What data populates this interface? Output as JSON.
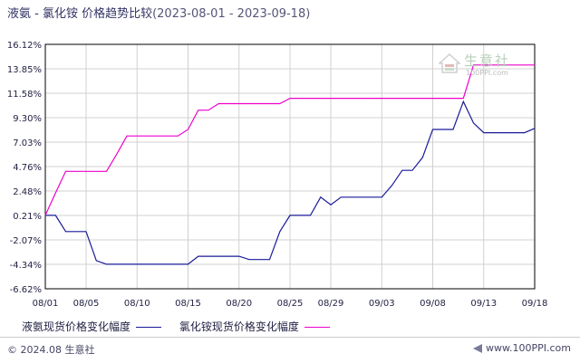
{
  "header": {
    "title": "液氨 - 氯化铵 价格趋势比较",
    "date_range": "(2023-08-01 - 2023-09-18)"
  },
  "watermark": {
    "name": "生意社",
    "url": "100PPI.com"
  },
  "legend": {
    "items": [
      {
        "label": "液氨现货价格变化幅度",
        "color": "#1a1a99"
      },
      {
        "label": "氯化铵现货价格变化幅度",
        "color": "#ee00cc"
      }
    ]
  },
  "footer": {
    "copyright": "© 2024.08 生意社",
    "url": "www.100PPI.com"
  },
  "colors": {
    "grid": "#d0d0d0",
    "axis": "#000000"
  },
  "chart_data": {
    "type": "line",
    "title": "",
    "xlabel": "",
    "ylabel": "",
    "y_ticks": [
      "16.12%",
      "13.85%",
      "11.58%",
      "9.30%",
      "7.03%",
      "4.76%",
      "2.48%",
      "0.21%",
      "-2.07%",
      "-4.34%",
      "-6.62%"
    ],
    "x_ticks": [
      "08/01",
      "08/05",
      "08/10",
      "08/15",
      "08/20",
      "08/25",
      "08/29",
      "09/03",
      "09/08",
      "09/13",
      "09/18"
    ],
    "ylim": [
      -6.62,
      16.12
    ],
    "grid": true,
    "legend_position": "bottom",
    "x": [
      "08/01",
      "08/02",
      "08/03",
      "08/04",
      "08/05",
      "08/06",
      "08/07",
      "08/08",
      "08/09",
      "08/10",
      "08/11",
      "08/12",
      "08/13",
      "08/14",
      "08/15",
      "08/16",
      "08/17",
      "08/18",
      "08/19",
      "08/20",
      "08/21",
      "08/22",
      "08/23",
      "08/24",
      "08/25",
      "08/26",
      "08/27",
      "08/28",
      "08/29",
      "08/30",
      "08/31",
      "09/01",
      "09/02",
      "09/03",
      "09/04",
      "09/05",
      "09/06",
      "09/07",
      "09/08",
      "09/09",
      "09/10",
      "09/11",
      "09/12",
      "09/13",
      "09/14",
      "09/15",
      "09/16",
      "09/17",
      "09/18"
    ],
    "series": [
      {
        "name": "液氨现货价格变化幅度",
        "values": [
          0.21,
          0.21,
          -1.3,
          -1.3,
          -1.3,
          -4.0,
          -4.34,
          -4.34,
          -4.34,
          -4.34,
          -4.34,
          -4.34,
          -4.34,
          -4.34,
          -4.34,
          -3.6,
          -3.6,
          -3.6,
          -3.6,
          -3.6,
          -3.9,
          -3.9,
          -3.9,
          -1.3,
          0.21,
          0.21,
          0.21,
          1.9,
          1.2,
          1.9,
          1.9,
          1.9,
          1.9,
          1.9,
          3.0,
          4.4,
          4.4,
          5.6,
          8.2,
          8.2,
          8.2,
          10.8,
          8.8,
          7.9,
          7.9,
          7.9,
          7.9,
          7.9,
          8.3
        ]
      },
      {
        "name": "氯化铵现货价格变化幅度",
        "values": [
          0.21,
          2.3,
          4.3,
          4.3,
          4.3,
          4.3,
          4.3,
          5.9,
          7.6,
          7.6,
          7.6,
          7.6,
          7.6,
          7.6,
          8.2,
          10.0,
          10.0,
          10.6,
          10.6,
          10.6,
          10.6,
          10.6,
          10.6,
          10.6,
          11.1,
          11.1,
          11.1,
          11.1,
          11.1,
          11.1,
          11.1,
          11.1,
          11.1,
          11.1,
          11.1,
          11.1,
          11.1,
          11.1,
          11.1,
          11.1,
          11.1,
          11.1,
          14.2,
          14.2,
          14.2,
          14.2,
          14.2,
          14.2,
          14.2
        ]
      }
    ]
  }
}
